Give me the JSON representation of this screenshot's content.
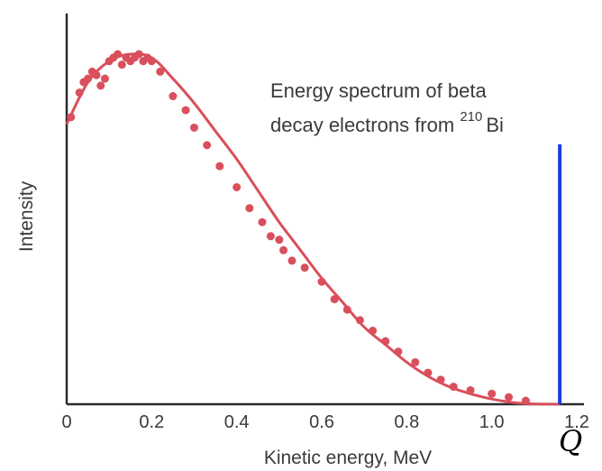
{
  "chart_data": {
    "type": "scatter",
    "title": "",
    "xlabel": "Kinetic energy, MeV",
    "ylabel": "Intensity",
    "xlim": [
      0,
      1.2
    ],
    "ylim": [
      0,
      1.0
    ],
    "x_ticks": [
      "0",
      "0.2",
      "0.4",
      "0.6",
      "0.8",
      "1.0",
      "1.2"
    ],
    "y_ticks": [],
    "grid": false,
    "annotation": {
      "line1": "Energy spectrum of beta",
      "line2_prefix": "decay electrons from ",
      "isotope_mass": "210",
      "isotope_symbol": "Bi"
    },
    "endpoint_line": {
      "x": 1.16,
      "label": "Q",
      "color": "#1a3ce0"
    },
    "series": [
      {
        "kind": "measurements",
        "color": "#d94f5c",
        "points": [
          [
            0.01,
            0.82
          ],
          [
            0.03,
            0.89
          ],
          [
            0.04,
            0.92
          ],
          [
            0.05,
            0.93
          ],
          [
            0.06,
            0.95
          ],
          [
            0.07,
            0.94
          ],
          [
            0.08,
            0.91
          ],
          [
            0.09,
            0.93
          ],
          [
            0.1,
            0.98
          ],
          [
            0.11,
            0.99
          ],
          [
            0.12,
            1.0
          ],
          [
            0.13,
            0.97
          ],
          [
            0.14,
            0.99
          ],
          [
            0.15,
            0.98
          ],
          [
            0.16,
            0.99
          ],
          [
            0.17,
            1.0
          ],
          [
            0.18,
            0.98
          ],
          [
            0.19,
            0.99
          ],
          [
            0.2,
            0.98
          ],
          [
            0.22,
            0.95
          ],
          [
            0.25,
            0.88
          ],
          [
            0.28,
            0.84
          ],
          [
            0.3,
            0.79
          ],
          [
            0.33,
            0.74
          ],
          [
            0.36,
            0.68
          ],
          [
            0.4,
            0.62
          ],
          [
            0.43,
            0.56
          ],
          [
            0.46,
            0.52
          ],
          [
            0.48,
            0.48
          ],
          [
            0.5,
            0.47
          ],
          [
            0.51,
            0.44
          ],
          [
            0.53,
            0.41
          ],
          [
            0.56,
            0.39
          ],
          [
            0.6,
            0.35
          ],
          [
            0.63,
            0.3
          ],
          [
            0.66,
            0.27
          ],
          [
            0.69,
            0.24
          ],
          [
            0.72,
            0.21
          ],
          [
            0.75,
            0.18
          ],
          [
            0.78,
            0.15
          ],
          [
            0.82,
            0.12
          ],
          [
            0.85,
            0.09
          ],
          [
            0.88,
            0.07
          ],
          [
            0.91,
            0.05
          ],
          [
            0.95,
            0.04
          ],
          [
            1.0,
            0.03
          ],
          [
            1.04,
            0.02
          ],
          [
            1.08,
            0.01
          ]
        ]
      },
      {
        "kind": "fit",
        "color": "#d94f5c",
        "x": [
          0,
          0.05,
          0.1,
          0.15,
          0.2,
          0.25,
          0.3,
          0.35,
          0.4,
          0.45,
          0.5,
          0.55,
          0.6,
          0.65,
          0.7,
          0.75,
          0.8,
          0.85,
          0.9,
          0.95,
          1.0,
          1.05,
          1.1,
          1.16
        ],
        "y": [
          0.8,
          0.92,
          0.98,
          1.0,
          0.99,
          0.93,
          0.86,
          0.78,
          0.7,
          0.61,
          0.52,
          0.44,
          0.36,
          0.29,
          0.22,
          0.17,
          0.12,
          0.08,
          0.05,
          0.03,
          0.015,
          0.005,
          0.001,
          0.0
        ]
      }
    ]
  }
}
